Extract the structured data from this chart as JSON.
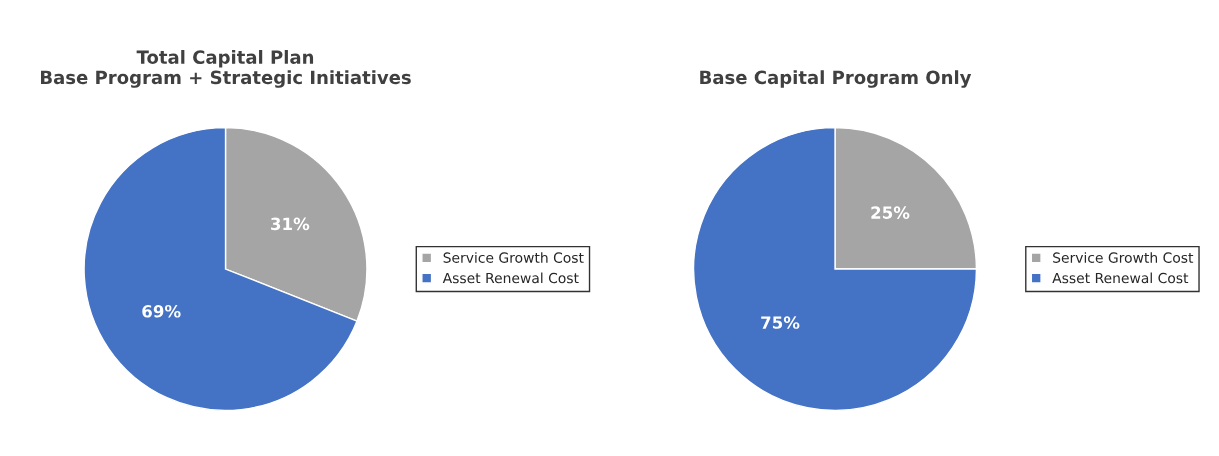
{
  "chart_data": [
    {
      "type": "pie",
      "title": "Total Capital Plan\nBase Program + Strategic Initiatives",
      "categories": [
        "Service Growth Cost",
        "Asset Renewal Cost"
      ],
      "values": [
        31,
        69
      ],
      "colors": [
        "#a5a5a5",
        "#4472c4"
      ],
      "value_labels": [
        "31%",
        "69%"
      ],
      "legend": "right"
    },
    {
      "type": "pie",
      "title": "Base Capital Program Only",
      "categories": [
        "Service Growth Cost",
        "Asset Renewal Cost"
      ],
      "values": [
        25,
        75
      ],
      "colors": [
        "#a5a5a5",
        "#4472c4"
      ],
      "value_labels": [
        "25%",
        "75%"
      ],
      "legend": "right"
    }
  ]
}
